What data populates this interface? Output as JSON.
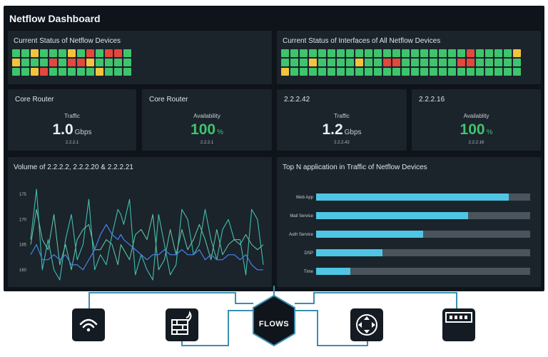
{
  "dashboard": {
    "title": "Netflow Dashboard"
  },
  "colors": {
    "ok": "#3ec46d",
    "critical": "#e4473c",
    "warning": "#f3c33b",
    "teal": "#3fbfb0",
    "blue": "#3f7fe0",
    "bar": "#4ec6e3"
  },
  "devices_status": {
    "title": "Current Status of Netflow Devices",
    "rows": [
      "ggygggygrgrrg",
      "ygggrgrrygggg",
      "ggyrgggggyggg"
    ]
  },
  "interfaces_status": {
    "title": "Current Status of Interfaces of All Netflow Devices",
    "rows": [
      "ggggggggggggggggggggrggggy",
      "gggyggggyggrrggggggrrggggg",
      "yggggggggggggggggggggggggg"
    ]
  },
  "kpis": [
    {
      "device": "Core Router",
      "metric": "Traffic",
      "value": "1.0",
      "unit": "Gbps",
      "source": "2.2.2.1"
    },
    {
      "device": "Core Router",
      "metric": "Availability",
      "value": "100",
      "unit": "%",
      "source": "2.2.2.1"
    },
    {
      "device": "2.2.2.42",
      "metric": "Traffic",
      "value": "1.2",
      "unit": "Gbps",
      "source": "2.2.2.42"
    },
    {
      "device": "2.2.2.16",
      "metric": "Availablity",
      "value": "100",
      "unit": "%",
      "source": "2.2.2.16"
    }
  ],
  "volume_chart": {
    "title": "Volume of 2.2.2.2, 2.2.2.20 & 2.2.2.21"
  },
  "top_apps": {
    "title": "Top N application in Traffic of Netflow Devices"
  },
  "bottom": {
    "center_label": "FLOWS"
  },
  "chart_data": [
    {
      "type": "line",
      "title": "Volume of 2.2.2.2, 2.2.2.20 & 2.2.2.21",
      "xlabel": "",
      "ylabel": "",
      "ylim": [
        158,
        176
      ],
      "yticks": [
        160,
        165,
        170,
        175
      ],
      "grid": false,
      "x": [
        0,
        1,
        2,
        3,
        4,
        5,
        6,
        7,
        8,
        9,
        10,
        11,
        12,
        13,
        14,
        15,
        15.5,
        16,
        17,
        18,
        19,
        20,
        21,
        22,
        23,
        24,
        25,
        26,
        27,
        28,
        29,
        30,
        31,
        32,
        33,
        34,
        35,
        36,
        37,
        38,
        39,
        40
      ],
      "series": [
        {
          "values": [
            166,
            176,
            160,
            166,
            160,
            158,
            166,
            171,
            162,
            165,
            174,
            160,
            163,
            161,
            167,
            172,
            171,
            169,
            174,
            159,
            163,
            160,
            158,
            171,
            165,
            159,
            161,
            172,
            170,
            163,
            165,
            172,
            166,
            162,
            168,
            170,
            166,
            166,
            159,
            172,
            170,
            161
          ]
        },
        {
          "values": [
            165,
            172,
            166,
            164,
            171,
            161,
            165,
            160,
            166,
            168,
            169,
            164,
            164,
            166,
            165,
            161,
            165,
            164,
            162,
            167,
            168,
            166,
            171,
            160,
            162,
            168,
            163,
            168,
            164,
            166,
            169,
            166,
            162,
            168,
            163,
            165,
            166,
            165,
            167,
            165,
            164,
            165
          ]
        },
        {
          "values": [
            163,
            165,
            162,
            162,
            163,
            162,
            163,
            161,
            161,
            160,
            162,
            164,
            167,
            169,
            167,
            166,
            167,
            166,
            165,
            164,
            163,
            162,
            163,
            163,
            164,
            163,
            163,
            164,
            163,
            163,
            164,
            162,
            163,
            162,
            162,
            163,
            163,
            162,
            163,
            161,
            160,
            160
          ]
        }
      ]
    },
    {
      "type": "bar",
      "orientation": "horizontal",
      "title": "Top N application in Traffic of Netflow Devices",
      "categories": [
        "Web App",
        "Mail Service",
        "Auth Service",
        "DSP",
        "Time"
      ],
      "values": [
        0.9,
        0.71,
        0.5,
        0.31,
        0.16
      ],
      "max": 1.0
    }
  ]
}
